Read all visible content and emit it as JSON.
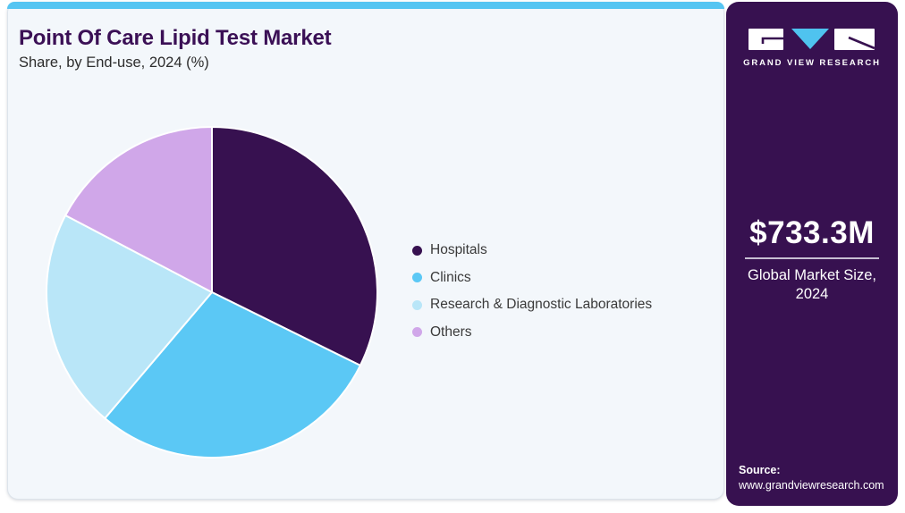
{
  "header": {
    "title": "Point Of Care Lipid Test Market",
    "subtitle": "Share, by End-use, 2024 (%)"
  },
  "chart_data": {
    "type": "pie",
    "title": "Point Of Care Lipid Test Market Share, by End-use, 2024 (%)",
    "unit": "%",
    "labels": [
      "Hospitals",
      "Clinics",
      "Research & Diagnostic Laboratories",
      "Others"
    ],
    "values": [
      32.3,
      28.9,
      21.5,
      17.3
    ],
    "colors": [
      "#371150",
      "#5bc8f5",
      "#b9e6f8",
      "#d0a7e9"
    ],
    "start_angle_deg": 0,
    "direction": "clockwise",
    "legend_position": "right",
    "value_labels_shown": false
  },
  "sidebar": {
    "brand_name": "GRAND VIEW RESEARCH",
    "logo_icon": "gvr-logo",
    "market_size_value": "$733.3M",
    "market_size_label": "Global Market Size, 2024",
    "source_label": "Source:",
    "source_url": "www.grandviewresearch.com"
  },
  "colors": {
    "accent_strip": "#56c5f2",
    "logo_triangle": "#4fc3ef",
    "sidebar_bg": "#371150",
    "card_bg": "#f3f7fb",
    "title": "#3b1056",
    "legend_text": "#3a3a3a",
    "divider": "#c6bed2"
  }
}
